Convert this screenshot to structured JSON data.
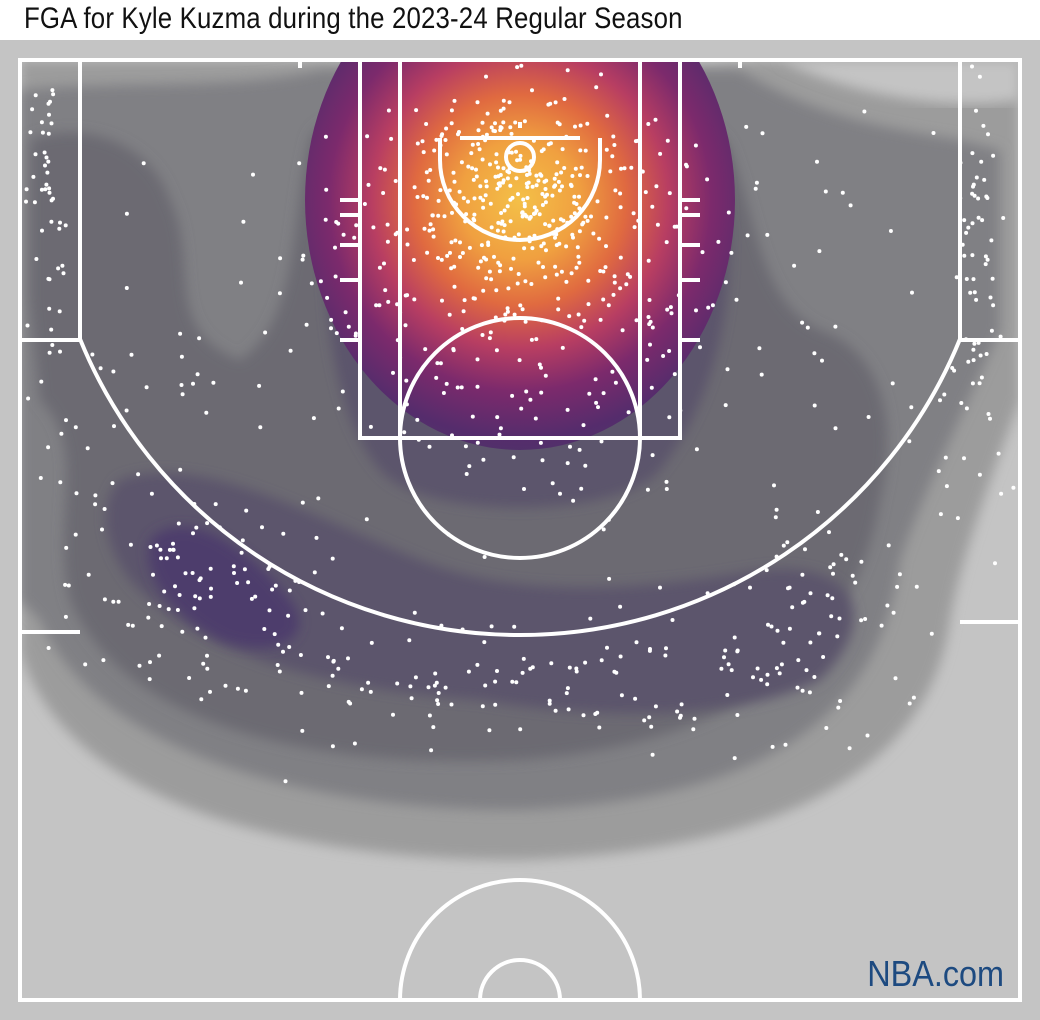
{
  "chart_data": {
    "type": "heatmap",
    "title": "FGA for Kyle Kuzma during the 2023-24 Regular Season",
    "subject": "shot chart density (half court)",
    "palette": [
      "#c4c4c4",
      "#9c9c9c",
      "#808084",
      "#6c6a72",
      "#5c546c",
      "#4e3c6c",
      "#5a2c6e",
      "#8a2e6c",
      "#c0406a",
      "#e8703a",
      "#f4b044"
    ],
    "shot_marker_color": "#ffffff",
    "court_line_color": "#ffffff",
    "grid": false,
    "legend": "none"
  },
  "watermark": "NBA.com",
  "watermark_color": "#1d4a80"
}
